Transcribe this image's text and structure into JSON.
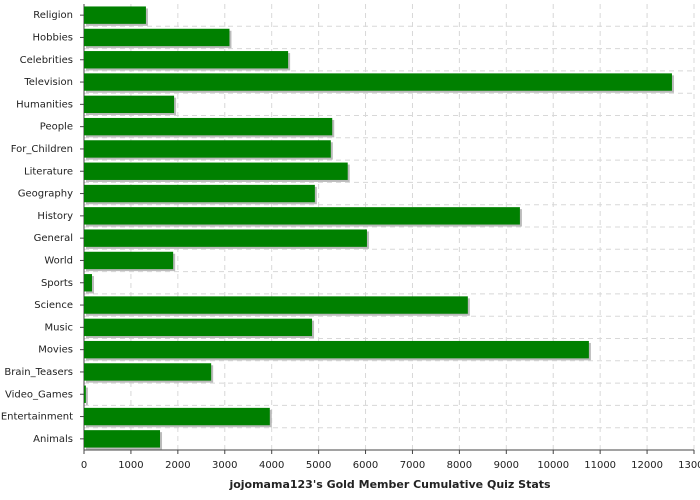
{
  "chart_data": {
    "type": "barh",
    "title": "jojomama123's Gold Member Cumulative Quiz Stats",
    "categories": [
      "Religion",
      "Hobbies",
      "Celebrities",
      "Television",
      "Humanities",
      "People",
      "For_Children",
      "Literature",
      "Geography",
      "History",
      "General",
      "World",
      "Sports",
      "Science",
      "Music",
      "Movies",
      "Brain_Teasers",
      "Video_Games",
      "Entertainment",
      "Animals"
    ],
    "values": [
      1320,
      3100,
      4350,
      12530,
      1920,
      5290,
      5260,
      5620,
      4920,
      9290,
      6030,
      1900,
      170,
      8180,
      4860,
      10760,
      2710,
      40,
      3960,
      1620
    ],
    "color": "#008000",
    "xlim": [
      0,
      13000
    ],
    "xticks": [
      0,
      1000,
      2000,
      3000,
      4000,
      5000,
      6000,
      7000,
      8000,
      9000,
      10000,
      11000,
      12000,
      13000
    ],
    "grid": true
  }
}
